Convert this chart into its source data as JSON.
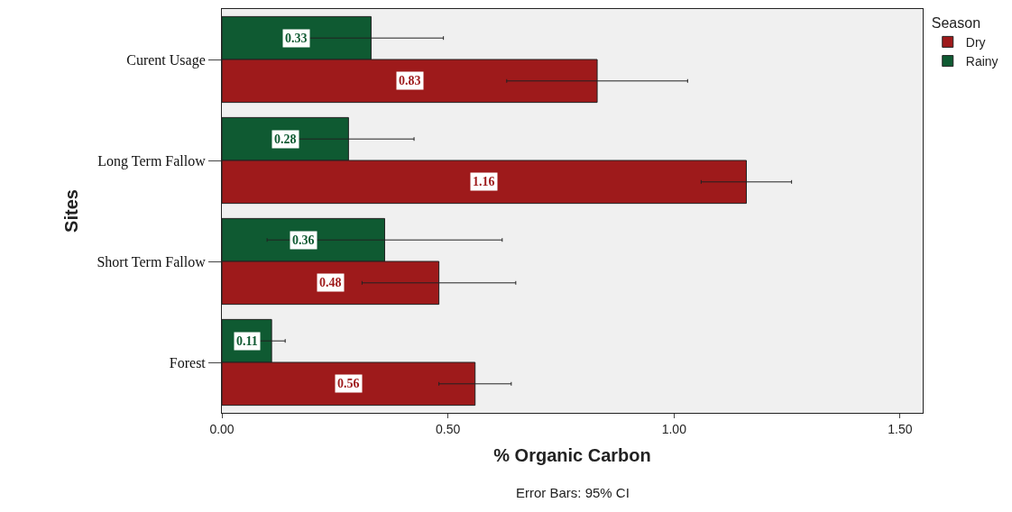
{
  "chart_data": {
    "type": "bar",
    "orientation": "horizontal",
    "categories": [
      "Curent Usage",
      "Long Term Fallow",
      "Short Term Fallow",
      "Forest"
    ],
    "series": [
      {
        "name": "Dry",
        "color": "#9e1a1b",
        "values": [
          0.83,
          1.16,
          0.48,
          0.56
        ],
        "errors": [
          0.2,
          0.1,
          0.17,
          0.08
        ]
      },
      {
        "name": "Rainy",
        "color": "#0f5a32",
        "values": [
          0.33,
          0.28,
          0.36,
          0.11
        ],
        "errors": [
          0.16,
          0.145,
          0.26,
          0.03
        ]
      }
    ],
    "xlim": [
      0,
      1.55
    ],
    "xticks": [
      {
        "value": 0,
        "label": "0.00"
      },
      {
        "value": 0.5,
        "label": "0.50"
      },
      {
        "value": 1,
        "label": "1.00"
      },
      {
        "value": 1.5,
        "label": "1.50"
      }
    ],
    "xlabel": "% Organic Carbon",
    "ylabel": "Sites",
    "legend_title": "Season",
    "legend": "top right",
    "grid": false,
    "data_labels": true,
    "annotations": [
      "Error Bars: 95% CI"
    ]
  }
}
